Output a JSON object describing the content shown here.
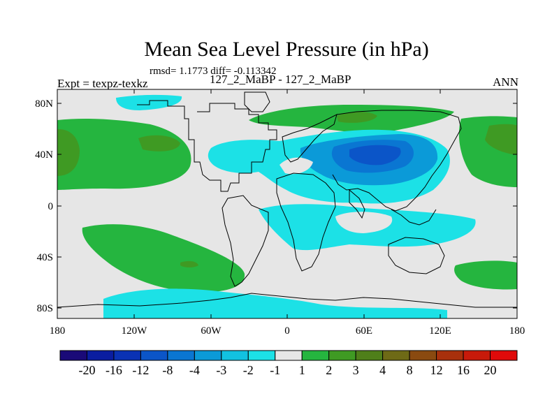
{
  "header": {
    "title": "Mean Sea Level Pressure (in hPa)",
    "stats": "rmsd= 1.1773  diff= -0.113342",
    "experiment": "Expt = texpz-texkz",
    "comparison": "127_2_MaBP - 127_2_MaBP",
    "season": "ANN"
  },
  "axes": {
    "y_ticks": [
      "80N",
      "40N",
      "0",
      "40S",
      "80S"
    ],
    "x_ticks": [
      "180",
      "120W",
      "60W",
      "0",
      "60E",
      "120E",
      "180"
    ]
  },
  "colorbar": {
    "labels": [
      "-20",
      "-16",
      "-12",
      "-8",
      "-4",
      "-3",
      "-2",
      "-1",
      "1",
      "2",
      "3",
      "4",
      "8",
      "12",
      "16",
      "20"
    ],
    "colors": [
      "#1a0a78",
      "#0a1da0",
      "#0a32b4",
      "#0b55c8",
      "#0a76d2",
      "#0b9ad8",
      "#12c2e0",
      "#1ce1e6",
      "#e6e6e6",
      "#25b53f",
      "#3f9a23",
      "#4f7f1a",
      "#6e6a16",
      "#8a4a10",
      "#a8300c",
      "#c81a0a",
      "#e00a0a"
    ]
  },
  "colors": {
    "ocean_neutral": "#e6e6e6",
    "land_outline": "#000000",
    "frame": "#000000"
  }
}
